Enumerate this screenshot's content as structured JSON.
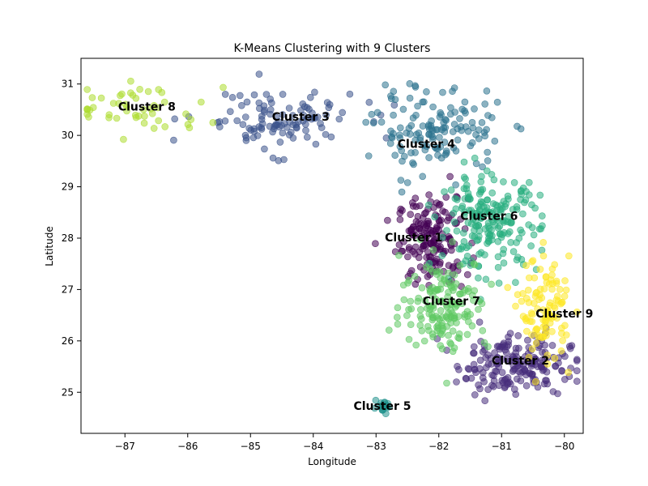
{
  "chart_data": {
    "type": "scatter",
    "title": "K-Means Clustering with 9 Clusters",
    "xlabel": "Longitude",
    "ylabel": "Latitude",
    "xlim": [
      -87.7,
      -79.7
    ],
    "ylim": [
      24.2,
      31.5
    ],
    "xticks": [
      -87,
      -86,
      -85,
      -84,
      -83,
      -82,
      -81,
      -80
    ],
    "yticks": [
      25,
      26,
      27,
      28,
      29,
      30,
      31
    ],
    "grid": false,
    "legend": "none",
    "marker_alpha": 0.55,
    "clusters": [
      {
        "label": "Cluster 1",
        "color": "#440154",
        "center": [
          -82.1,
          27.95
        ],
        "spread": [
          0.28,
          0.42
        ],
        "points": 170,
        "label_pos": [
          -82.4,
          28.0
        ]
      },
      {
        "label": "Cluster 2",
        "color": "#472d7b",
        "center": [
          -80.8,
          25.55
        ],
        "spread": [
          0.45,
          0.3
        ],
        "points": 190,
        "label_pos": [
          -80.7,
          25.6
        ]
      },
      {
        "label": "Cluster 3",
        "color": "#3b528b",
        "center": [
          -84.6,
          30.3
        ],
        "spread": [
          0.65,
          0.3
        ],
        "points": 110,
        "label_pos": [
          -84.2,
          30.35
        ]
      },
      {
        "label": "Cluster 4",
        "color": "#2c728e",
        "center": [
          -82.0,
          30.1
        ],
        "spread": [
          0.5,
          0.4
        ],
        "points": 140,
        "label_pos": [
          -82.2,
          29.82
        ]
      },
      {
        "label": "Cluster 5",
        "color": "#21918c",
        "center": [
          -82.9,
          24.7
        ],
        "spread": [
          0.07,
          0.05
        ],
        "points": 22,
        "label_pos": [
          -82.9,
          24.72
        ]
      },
      {
        "label": "Cluster 6",
        "color": "#28ae80",
        "center": [
          -81.2,
          28.3
        ],
        "spread": [
          0.4,
          0.45
        ],
        "points": 200,
        "label_pos": [
          -81.2,
          28.42
        ]
      },
      {
        "label": "Cluster 7",
        "color": "#5ec962",
        "center": [
          -81.9,
          26.7
        ],
        "spread": [
          0.35,
          0.45
        ],
        "points": 160,
        "label_pos": [
          -81.8,
          26.76
        ]
      },
      {
        "label": "Cluster 8",
        "color": "#addc30",
        "center": [
          -86.8,
          30.5
        ],
        "spread": [
          0.55,
          0.25
        ],
        "points": 50,
        "label_pos": [
          -86.65,
          30.55
        ]
      },
      {
        "label": "Cluster 9",
        "color": "#fde725",
        "center": [
          -80.3,
          26.6
        ],
        "spread": [
          0.2,
          0.5
        ],
        "points": 110,
        "label_pos": [
          -80.0,
          26.52
        ]
      }
    ]
  }
}
